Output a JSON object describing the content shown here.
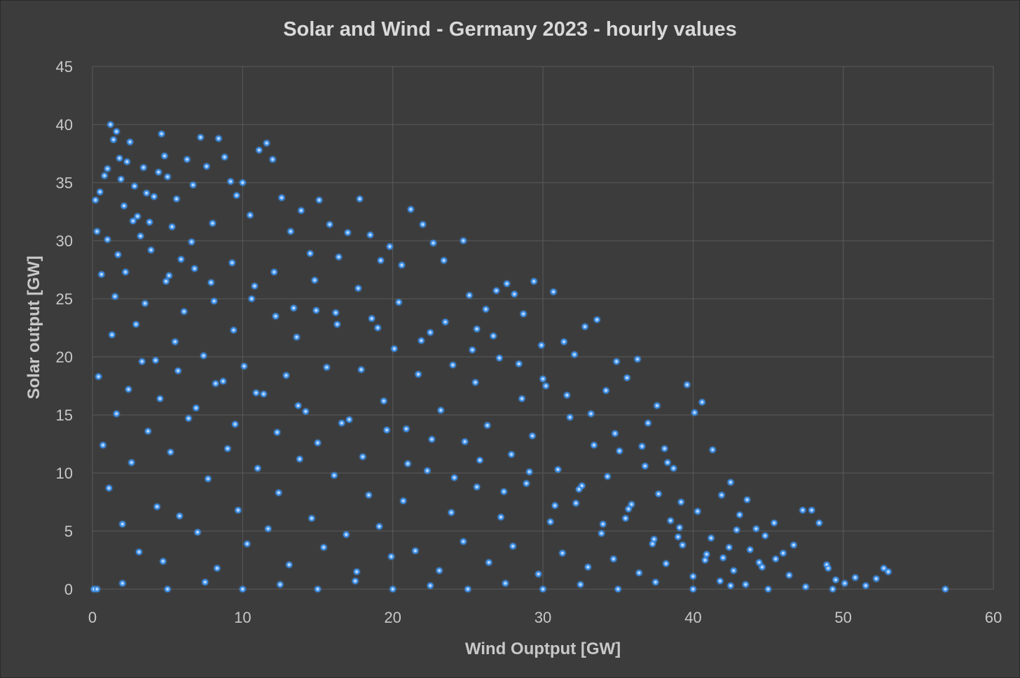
{
  "chart_data": {
    "type": "scatter",
    "title": "Solar and Wind - Germany 2023 - hourly values",
    "xlabel": "Wind Ouptput [GW]",
    "ylabel": "Solar output [GW]",
    "xlim": [
      0,
      60
    ],
    "ylim": [
      0,
      45
    ],
    "xticks": [
      "0",
      "10",
      "20",
      "30",
      "40",
      "50",
      "60"
    ],
    "yticks": [
      "0",
      "5",
      "10",
      "15",
      "20",
      "25",
      "30",
      "35",
      "40",
      "45"
    ],
    "grid": true,
    "legend": "none",
    "series": [
      {
        "color": "#3d8fe6",
        "points": [
          [
            0.2,
            33.5
          ],
          [
            0.3,
            30.8
          ],
          [
            0.5,
            34.2
          ],
          [
            0.6,
            27.1
          ],
          [
            0.8,
            35.6
          ],
          [
            1.0,
            36.2
          ],
          [
            1.2,
            40.0
          ],
          [
            1.4,
            38.7
          ],
          [
            1.6,
            39.4
          ],
          [
            1.8,
            37.1
          ],
          [
            1.9,
            35.3
          ],
          [
            2.1,
            33.0
          ],
          [
            2.3,
            36.8
          ],
          [
            2.5,
            38.5
          ],
          [
            2.8,
            34.7
          ],
          [
            3.0,
            32.1
          ],
          [
            3.2,
            30.4
          ],
          [
            3.4,
            36.3
          ],
          [
            3.6,
            34.1
          ],
          [
            3.8,
            31.6
          ],
          [
            4.1,
            33.8
          ],
          [
            4.4,
            35.9
          ],
          [
            4.6,
            39.2
          ],
          [
            4.8,
            37.3
          ],
          [
            5.0,
            35.5
          ],
          [
            5.3,
            31.2
          ],
          [
            5.6,
            33.6
          ],
          [
            5.9,
            28.4
          ],
          [
            6.3,
            37.0
          ],
          [
            6.7,
            34.8
          ],
          [
            7.2,
            38.9
          ],
          [
            7.6,
            36.4
          ],
          [
            8.0,
            31.5
          ],
          [
            8.4,
            38.8
          ],
          [
            8.8,
            37.2
          ],
          [
            9.2,
            35.1
          ],
          [
            9.6,
            33.9
          ],
          [
            10.0,
            35.0
          ],
          [
            10.5,
            32.2
          ],
          [
            11.1,
            37.8
          ],
          [
            11.6,
            38.4
          ],
          [
            12.0,
            37.0
          ],
          [
            12.6,
            33.7
          ],
          [
            13.2,
            30.8
          ],
          [
            13.9,
            32.6
          ],
          [
            14.5,
            28.9
          ],
          [
            15.1,
            33.5
          ],
          [
            15.8,
            31.4
          ],
          [
            16.4,
            28.6
          ],
          [
            17.0,
            30.7
          ],
          [
            17.8,
            33.6
          ],
          [
            18.5,
            30.5
          ],
          [
            19.2,
            28.3
          ],
          [
            19.8,
            29.5
          ],
          [
            20.6,
            27.9
          ],
          [
            21.2,
            32.7
          ],
          [
            22.0,
            31.4
          ],
          [
            22.7,
            29.8
          ],
          [
            23.4,
            28.3
          ],
          [
            24.7,
            30.0
          ],
          [
            25.1,
            25.3
          ],
          [
            25.6,
            22.4
          ],
          [
            26.2,
            24.1
          ],
          [
            26.9,
            25.7
          ],
          [
            27.6,
            26.3
          ],
          [
            28.1,
            25.4
          ],
          [
            28.7,
            23.7
          ],
          [
            29.4,
            26.5
          ],
          [
            29.9,
            21.0
          ],
          [
            30.7,
            25.6
          ],
          [
            31.4,
            21.3
          ],
          [
            32.1,
            20.2
          ],
          [
            32.8,
            22.6
          ],
          [
            33.6,
            23.2
          ],
          [
            34.2,
            17.1
          ],
          [
            34.9,
            19.6
          ],
          [
            35.6,
            18.2
          ],
          [
            36.3,
            19.8
          ],
          [
            37.0,
            14.3
          ],
          [
            37.6,
            15.8
          ],
          [
            38.1,
            12.1
          ],
          [
            38.7,
            10.4
          ],
          [
            39.2,
            7.5
          ],
          [
            39.6,
            17.6
          ],
          [
            40.1,
            15.2
          ],
          [
            40.6,
            16.1
          ],
          [
            41.3,
            12.0
          ],
          [
            41.9,
            8.1
          ],
          [
            42.5,
            9.2
          ],
          [
            43.1,
            6.4
          ],
          [
            43.6,
            7.7
          ],
          [
            44.2,
            5.2
          ],
          [
            44.8,
            4.6
          ],
          [
            45.4,
            5.7
          ],
          [
            46.0,
            3.1
          ],
          [
            46.7,
            3.8
          ],
          [
            47.3,
            6.8
          ],
          [
            47.9,
            6.8
          ],
          [
            48.4,
            5.7
          ],
          [
            48.9,
            2.1
          ],
          [
            49.5,
            0.8
          ],
          [
            50.1,
            0.5
          ],
          [
            50.8,
            1.0
          ],
          [
            51.5,
            0.3
          ],
          [
            52.2,
            0.9
          ],
          [
            52.7,
            1.8
          ],
          [
            56.8,
            0.0
          ],
          [
            0.1,
            0.0
          ],
          [
            53.0,
            1.5
          ],
          [
            49.0,
            1.8
          ],
          [
            1.5,
            25.2
          ],
          [
            2.2,
            27.3
          ],
          [
            2.9,
            22.8
          ],
          [
            3.5,
            24.6
          ],
          [
            4.2,
            19.7
          ],
          [
            4.9,
            26.5
          ],
          [
            5.5,
            21.3
          ],
          [
            6.1,
            23.9
          ],
          [
            6.8,
            27.6
          ],
          [
            7.4,
            20.1
          ],
          [
            8.1,
            24.8
          ],
          [
            8.7,
            17.9
          ],
          [
            9.4,
            22.3
          ],
          [
            10.1,
            19.2
          ],
          [
            10.8,
            26.1
          ],
          [
            11.4,
            16.8
          ],
          [
            12.2,
            23.5
          ],
          [
            12.9,
            18.4
          ],
          [
            13.6,
            21.7
          ],
          [
            14.2,
            15.3
          ],
          [
            14.9,
            24.0
          ],
          [
            15.6,
            19.1
          ],
          [
            16.3,
            22.8
          ],
          [
            17.1,
            14.6
          ],
          [
            17.9,
            18.9
          ],
          [
            18.6,
            23.3
          ],
          [
            19.4,
            16.2
          ],
          [
            20.1,
            20.7
          ],
          [
            20.9,
            13.8
          ],
          [
            21.7,
            18.5
          ],
          [
            22.5,
            22.1
          ],
          [
            23.2,
            15.4
          ],
          [
            24.0,
            19.3
          ],
          [
            24.8,
            12.7
          ],
          [
            25.5,
            17.8
          ],
          [
            26.3,
            14.1
          ],
          [
            27.1,
            19.9
          ],
          [
            27.9,
            11.6
          ],
          [
            28.6,
            16.4
          ],
          [
            29.3,
            13.2
          ],
          [
            30.2,
            17.5
          ],
          [
            31.0,
            10.3
          ],
          [
            31.8,
            14.8
          ],
          [
            32.6,
            8.9
          ],
          [
            33.4,
            12.4
          ],
          [
            34.3,
            9.7
          ],
          [
            35.1,
            11.9
          ],
          [
            35.9,
            7.3
          ],
          [
            36.8,
            10.6
          ],
          [
            37.7,
            8.2
          ],
          [
            38.5,
            5.9
          ],
          [
            39.3,
            3.8
          ],
          [
            40.3,
            6.7
          ],
          [
            41.2,
            4.4
          ],
          [
            42.0,
            2.7
          ],
          [
            42.9,
            5.1
          ],
          [
            43.8,
            3.4
          ],
          [
            44.6,
            1.9
          ],
          [
            45.5,
            2.6
          ],
          [
            46.4,
            1.2
          ],
          [
            0.7,
            12.4
          ],
          [
            1.1,
            8.7
          ],
          [
            1.6,
            15.1
          ],
          [
            2.0,
            5.6
          ],
          [
            2.6,
            10.9
          ],
          [
            3.1,
            3.2
          ],
          [
            3.7,
            13.6
          ],
          [
            4.3,
            7.1
          ],
          [
            4.7,
            2.4
          ],
          [
            5.2,
            11.8
          ],
          [
            5.8,
            6.3
          ],
          [
            6.4,
            14.7
          ],
          [
            7.0,
            4.9
          ],
          [
            7.7,
            9.5
          ],
          [
            8.3,
            1.8
          ],
          [
            9.0,
            12.1
          ],
          [
            9.7,
            6.8
          ],
          [
            10.3,
            3.9
          ],
          [
            11.0,
            10.4
          ],
          [
            11.7,
            5.2
          ],
          [
            12.4,
            8.3
          ],
          [
            13.1,
            2.1
          ],
          [
            13.8,
            11.2
          ],
          [
            14.6,
            6.1
          ],
          [
            15.4,
            3.6
          ],
          [
            16.1,
            9.8
          ],
          [
            16.9,
            4.7
          ],
          [
            17.6,
            1.5
          ],
          [
            18.4,
            8.1
          ],
          [
            19.1,
            5.4
          ],
          [
            19.9,
            2.8
          ],
          [
            20.7,
            7.6
          ],
          [
            21.5,
            3.3
          ],
          [
            22.3,
            10.2
          ],
          [
            23.1,
            1.6
          ],
          [
            23.9,
            6.6
          ],
          [
            24.7,
            4.1
          ],
          [
            25.6,
            8.8
          ],
          [
            26.4,
            2.3
          ],
          [
            27.2,
            6.2
          ],
          [
            28.0,
            3.7
          ],
          [
            28.9,
            9.1
          ],
          [
            29.7,
            1.3
          ],
          [
            30.5,
            5.8
          ],
          [
            31.3,
            3.1
          ],
          [
            32.2,
            7.4
          ],
          [
            33.0,
            1.9
          ],
          [
            33.9,
            4.8
          ],
          [
            34.7,
            2.6
          ],
          [
            35.5,
            6.1
          ],
          [
            36.4,
            1.4
          ],
          [
            37.3,
            3.9
          ],
          [
            38.2,
            2.2
          ],
          [
            39.0,
            4.5
          ],
          [
            40.0,
            1.1
          ],
          [
            40.9,
            3.0
          ],
          [
            41.8,
            0.7
          ],
          [
            42.7,
            1.6
          ],
          [
            43.5,
            0.4
          ],
          [
            44.4,
            2.3
          ],
          [
            0.4,
            18.3
          ],
          [
            1.3,
            21.9
          ],
          [
            2.4,
            17.2
          ],
          [
            3.3,
            19.6
          ],
          [
            4.5,
            16.4
          ],
          [
            5.7,
            18.8
          ],
          [
            6.9,
            15.6
          ],
          [
            8.2,
            17.7
          ],
          [
            9.5,
            14.2
          ],
          [
            10.9,
            16.9
          ],
          [
            12.3,
            13.5
          ],
          [
            13.7,
            15.8
          ],
          [
            15.0,
            12.6
          ],
          [
            16.6,
            14.3
          ],
          [
            18.0,
            11.4
          ],
          [
            19.6,
            13.7
          ],
          [
            21.0,
            10.8
          ],
          [
            22.6,
            12.9
          ],
          [
            24.1,
            9.6
          ],
          [
            25.8,
            11.1
          ],
          [
            27.4,
            8.4
          ],
          [
            29.1,
            10.1
          ],
          [
            30.8,
            7.2
          ],
          [
            32.4,
            8.6
          ],
          [
            34.0,
            5.6
          ],
          [
            35.7,
            6.9
          ],
          [
            37.4,
            4.3
          ],
          [
            39.1,
            5.3
          ],
          [
            40.8,
            2.5
          ],
          [
            42.4,
            3.6
          ],
          [
            1.0,
            30.1
          ],
          [
            1.7,
            28.8
          ],
          [
            2.7,
            31.7
          ],
          [
            3.9,
            29.2
          ],
          [
            5.1,
            27.0
          ],
          [
            6.6,
            29.9
          ],
          [
            7.9,
            26.4
          ],
          [
            9.3,
            28.1
          ],
          [
            10.6,
            25.0
          ],
          [
            12.1,
            27.3
          ],
          [
            13.4,
            24.2
          ],
          [
            14.8,
            26.6
          ],
          [
            16.2,
            23.8
          ],
          [
            17.7,
            25.9
          ],
          [
            19.0,
            22.5
          ],
          [
            20.4,
            24.7
          ],
          [
            21.9,
            21.4
          ],
          [
            23.5,
            23.0
          ],
          [
            25.3,
            20.6
          ],
          [
            26.7,
            21.8
          ],
          [
            28.4,
            19.4
          ],
          [
            30.0,
            18.1
          ],
          [
            31.6,
            16.7
          ],
          [
            33.2,
            15.1
          ],
          [
            34.8,
            13.4
          ],
          [
            36.6,
            12.3
          ],
          [
            38.3,
            10.9
          ],
          [
            0.3,
            0.0
          ],
          [
            5.0,
            0.0
          ],
          [
            10.0,
            0.0
          ],
          [
            15.0,
            0.0
          ],
          [
            20.0,
            0.0
          ],
          [
            25.0,
            0.0
          ],
          [
            30.0,
            0.0
          ],
          [
            35.0,
            0.0
          ],
          [
            40.0,
            0.0
          ],
          [
            45.0,
            0.0
          ],
          [
            49.3,
            0.0
          ],
          [
            2.0,
            0.5
          ],
          [
            7.5,
            0.6
          ],
          [
            12.5,
            0.4
          ],
          [
            17.5,
            0.7
          ],
          [
            22.5,
            0.3
          ],
          [
            27.5,
            0.5
          ],
          [
            32.5,
            0.4
          ],
          [
            37.5,
            0.6
          ],
          [
            42.5,
            0.3
          ],
          [
            47.5,
            0.2
          ]
        ]
      }
    ]
  }
}
